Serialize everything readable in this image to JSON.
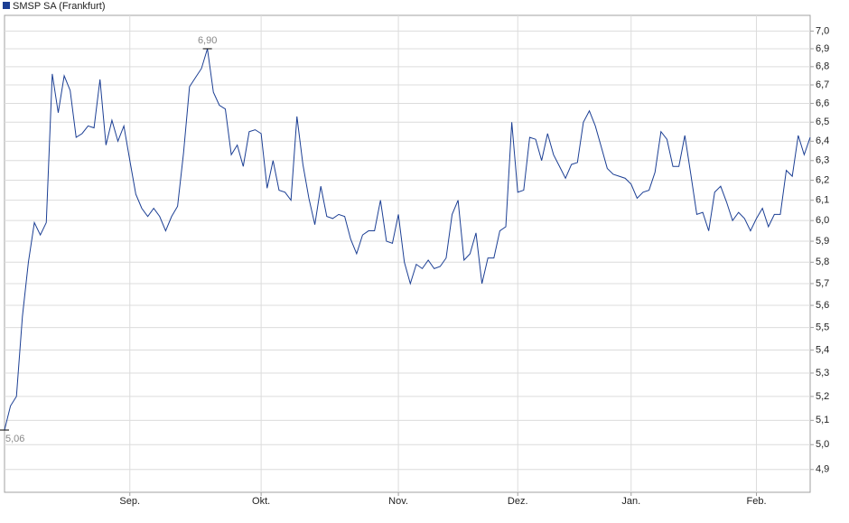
{
  "chart_data": {
    "type": "line",
    "log_scale": true,
    "grid": true,
    "legend": "top-left",
    "categories": [
      null,
      null,
      null,
      null,
      null,
      null,
      null,
      null,
      null,
      null,
      null,
      null,
      null,
      null,
      null,
      null,
      null,
      null,
      null,
      null,
      null,
      "Sep.",
      null,
      null,
      null,
      null,
      null,
      null,
      null,
      null,
      null,
      null,
      null,
      null,
      null,
      null,
      null,
      null,
      null,
      null,
      null,
      null,
      null,
      "Okt.",
      null,
      null,
      null,
      null,
      null,
      null,
      null,
      null,
      null,
      null,
      null,
      null,
      null,
      null,
      null,
      null,
      null,
      null,
      null,
      null,
      null,
      null,
      "Nov.",
      null,
      null,
      null,
      null,
      null,
      null,
      null,
      null,
      null,
      null,
      null,
      null,
      null,
      null,
      null,
      null,
      null,
      null,
      null,
      "Dez.",
      null,
      null,
      null,
      null,
      null,
      null,
      null,
      null,
      null,
      null,
      null,
      null,
      null,
      null,
      null,
      null,
      null,
      null,
      "Jan.",
      null,
      null,
      null,
      null,
      null,
      null,
      null,
      null,
      null,
      null,
      null,
      null,
      null,
      null,
      null,
      null,
      null,
      null,
      null,
      null,
      "Feb.",
      null,
      null,
      null,
      null,
      null,
      null,
      null,
      null,
      null
    ],
    "series": [
      {
        "name": "SMSP SA (Frankfurt)",
        "color": "#1c3f94",
        "values": [
          5.06,
          5.16,
          5.2,
          5.55,
          5.8,
          5.99,
          5.93,
          5.99,
          6.76,
          6.55,
          6.75,
          6.67,
          6.42,
          6.44,
          6.48,
          6.47,
          6.73,
          6.38,
          6.51,
          6.4,
          6.48,
          6.3,
          6.13,
          6.06,
          6.02,
          6.06,
          6.02,
          5.95,
          6.02,
          6.07,
          6.34,
          6.69,
          6.74,
          6.79,
          6.9,
          6.66,
          6.59,
          6.57,
          6.33,
          6.38,
          6.27,
          6.45,
          6.46,
          6.44,
          6.16,
          6.3,
          6.15,
          6.14,
          6.1,
          6.53,
          6.28,
          6.11,
          5.98,
          6.17,
          6.02,
          6.01,
          6.03,
          6.02,
          5.91,
          5.84,
          5.93,
          5.95,
          5.95,
          6.1,
          5.9,
          5.89,
          6.03,
          5.8,
          5.7,
          5.79,
          5.77,
          5.81,
          5.77,
          5.78,
          5.82,
          6.03,
          6.1,
          5.81,
          5.84,
          5.94,
          5.7,
          5.82,
          5.82,
          5.95,
          5.97,
          6.5,
          6.14,
          6.15,
          6.42,
          6.41,
          6.3,
          6.44,
          6.33,
          6.27,
          6.21,
          6.28,
          6.29,
          6.5,
          6.56,
          6.48,
          6.37,
          6.26,
          6.23,
          6.22,
          6.21,
          6.18,
          6.11,
          6.14,
          6.15,
          6.24,
          6.45,
          6.41,
          6.27,
          6.27,
          6.43,
          6.23,
          6.03,
          6.04,
          5.95,
          6.14,
          6.17,
          6.09,
          6.0,
          6.04,
          6.01,
          5.95,
          6.01,
          6.06,
          5.97,
          6.03,
          6.03,
          6.25,
          6.22,
          6.43,
          6.33,
          6.42
        ],
        "value_labels": [
          "5,06",
          null,
          null,
          null,
          null,
          null,
          null,
          null,
          null,
          null,
          null,
          null,
          null,
          null,
          null,
          null,
          null,
          null,
          null,
          null,
          null,
          null,
          null,
          null,
          null,
          null,
          null,
          null,
          null,
          null,
          null,
          null,
          null,
          null,
          "6,90",
          null,
          null,
          null,
          null,
          null,
          null,
          null,
          null,
          null,
          null,
          null,
          null,
          null,
          null,
          null,
          null,
          null,
          null,
          null,
          null,
          null,
          null,
          null,
          null,
          null,
          null,
          null,
          null,
          null,
          null,
          null,
          null,
          null,
          null,
          null,
          null,
          null,
          null,
          null,
          null,
          null,
          null,
          null,
          null,
          null,
          null,
          null,
          null,
          null,
          null,
          null,
          null,
          null,
          null,
          null,
          null,
          null,
          null,
          null,
          null,
          null,
          null,
          null,
          null,
          null,
          null,
          null,
          null,
          null,
          null,
          null,
          null,
          null,
          null,
          null,
          null,
          null,
          null,
          null,
          null,
          null,
          null,
          null,
          null,
          null,
          null,
          null,
          null,
          null,
          null,
          null,
          null,
          null,
          null,
          null,
          null
        ]
      }
    ],
    "ylim": [
      4.81,
      7.09
    ],
    "yticks": [
      {
        "value": 4.9,
        "label": "4,9"
      },
      {
        "value": 5.0,
        "label": "5,0"
      },
      {
        "value": 5.1,
        "label": "5,1"
      },
      {
        "value": 5.2,
        "label": "5,2"
      },
      {
        "value": 5.3,
        "label": "5,3"
      },
      {
        "value": 5.4,
        "label": "5,4"
      },
      {
        "value": 5.5,
        "label": "5,5"
      },
      {
        "value": 5.6,
        "label": "5,6"
      },
      {
        "value": 5.7,
        "label": "5,7"
      },
      {
        "value": 5.8,
        "label": "5,8"
      },
      {
        "value": 5.9,
        "label": "5,9"
      },
      {
        "value": 6.0,
        "label": "6,0"
      },
      {
        "value": 6.1,
        "label": "6,1"
      },
      {
        "value": 6.2,
        "label": "6,2"
      },
      {
        "value": 6.3,
        "label": "6,3"
      },
      {
        "value": 6.4,
        "label": "6,4"
      },
      {
        "value": 6.5,
        "label": "6,5"
      },
      {
        "value": 6.6,
        "label": "6,6"
      },
      {
        "value": 6.7,
        "label": "6,7"
      },
      {
        "value": 6.8,
        "label": "6,8"
      },
      {
        "value": 6.9,
        "label": "6,9"
      },
      {
        "value": 7.0,
        "label": "7,0"
      }
    ]
  }
}
